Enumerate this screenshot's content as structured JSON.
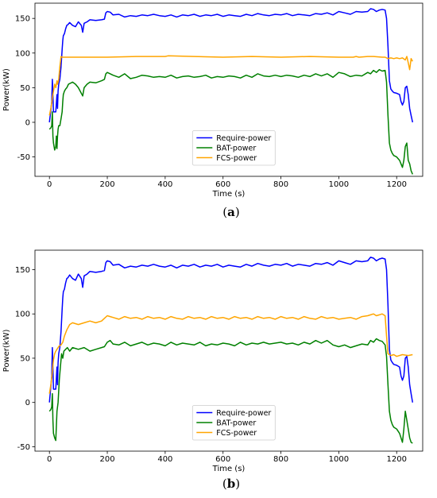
{
  "chart_data": [
    {
      "type": "line",
      "caption_open": "(",
      "caption_letter": "a",
      "caption_close": ")",
      "xlabel": "Time (s)",
      "ylabel": "Power(kW)",
      "xlim": [
        -50,
        1290
      ],
      "ylim": [
        -78,
        172
      ],
      "xticks": [
        0,
        200,
        400,
        600,
        800,
        1000,
        1200
      ],
      "yticks": [
        -50,
        0,
        50,
        100,
        150
      ],
      "legend_position": "lower-center",
      "series": [
        {
          "name": "Require-power",
          "color": "#0000ff",
          "x": [
            0,
            5,
            8,
            10,
            12,
            14,
            18,
            22,
            26,
            28,
            30,
            32,
            36,
            40,
            44,
            46,
            48,
            52,
            56,
            60,
            64,
            70,
            80,
            90,
            100,
            110,
            115,
            120,
            130,
            140,
            160,
            180,
            190,
            195,
            200,
            210,
            220,
            240,
            260,
            280,
            300,
            320,
            340,
            360,
            380,
            400,
            420,
            440,
            460,
            480,
            500,
            520,
            540,
            560,
            580,
            600,
            620,
            640,
            660,
            680,
            700,
            720,
            740,
            760,
            780,
            800,
            820,
            840,
            860,
            880,
            900,
            920,
            940,
            960,
            980,
            1000,
            1020,
            1040,
            1060,
            1080,
            1100,
            1110,
            1120,
            1130,
            1140,
            1150,
            1160,
            1165,
            1170,
            1175,
            1180,
            1185,
            1190,
            1200,
            1210,
            1215,
            1220,
            1225,
            1230,
            1235,
            1240,
            1245,
            1250,
            1255
          ],
          "y": [
            0,
            18,
            30,
            62,
            40,
            15,
            15,
            15,
            40,
            20,
            45,
            55,
            62,
            80,
            105,
            118,
            125,
            128,
            135,
            140,
            141,
            144,
            140,
            138,
            145,
            140,
            130,
            143,
            145,
            148,
            147,
            148,
            149,
            158,
            160,
            159,
            155,
            156,
            152,
            154,
            153,
            155,
            154,
            156,
            154,
            153,
            155,
            152,
            155,
            154,
            156,
            153,
            155,
            154,
            156,
            153,
            155,
            154,
            153,
            156,
            154,
            157,
            155,
            154,
            156,
            155,
            157,
            154,
            156,
            155,
            154,
            157,
            156,
            158,
            155,
            160,
            158,
            156,
            160,
            159,
            160,
            164,
            163,
            160,
            162,
            163,
            162,
            150,
            110,
            60,
            48,
            45,
            43,
            42,
            40,
            30,
            25,
            30,
            50,
            52,
            40,
            20,
            10,
            0
          ]
        },
        {
          "name": "BAT-power",
          "color": "#008000",
          "x": [
            0,
            5,
            8,
            10,
            12,
            14,
            18,
            22,
            24,
            26,
            28,
            30,
            32,
            36,
            40,
            44,
            46,
            48,
            52,
            56,
            60,
            66,
            80,
            90,
            100,
            110,
            115,
            120,
            130,
            140,
            160,
            180,
            190,
            195,
            200,
            210,
            220,
            240,
            260,
            280,
            300,
            320,
            340,
            360,
            380,
            400,
            420,
            440,
            460,
            480,
            500,
            520,
            540,
            560,
            580,
            600,
            620,
            640,
            660,
            680,
            700,
            720,
            740,
            760,
            780,
            800,
            820,
            840,
            860,
            880,
            900,
            920,
            940,
            960,
            980,
            1000,
            1020,
            1040,
            1060,
            1080,
            1100,
            1110,
            1120,
            1130,
            1140,
            1150,
            1160,
            1165,
            1170,
            1175,
            1180,
            1185,
            1190,
            1200,
            1210,
            1215,
            1220,
            1225,
            1230,
            1235,
            1240,
            1245,
            1250,
            1255
          ],
          "y": [
            -10,
            -8,
            -5,
            15,
            -20,
            -30,
            -40,
            -35,
            -20,
            -38,
            -20,
            -10,
            -5,
            -5,
            5,
            15,
            30,
            40,
            45,
            48,
            50,
            55,
            58,
            55,
            50,
            42,
            38,
            50,
            55,
            58,
            57,
            60,
            62,
            70,
            72,
            70,
            68,
            65,
            70,
            63,
            65,
            68,
            67,
            65,
            66,
            65,
            68,
            64,
            66,
            67,
            65,
            66,
            68,
            64,
            66,
            65,
            67,
            66,
            64,
            68,
            65,
            70,
            67,
            66,
            68,
            66,
            68,
            67,
            65,
            68,
            66,
            70,
            67,
            70,
            65,
            72,
            70,
            66,
            68,
            67,
            72,
            70,
            75,
            72,
            76,
            74,
            75,
            58,
            10,
            -30,
            -40,
            -45,
            -48,
            -50,
            -55,
            -60,
            -65,
            -55,
            -35,
            -30,
            -55,
            -60,
            -70,
            -75
          ]
        },
        {
          "name": "FCS-power",
          "color": "#ffa500",
          "x": [
            0,
            5,
            8,
            10,
            12,
            14,
            18,
            22,
            26,
            28,
            30,
            32,
            36,
            40,
            44,
            48,
            100,
            200,
            300,
            400,
            410,
            500,
            600,
            700,
            800,
            900,
            1000,
            1050,
            1060,
            1070,
            1100,
            1110,
            1120,
            1150,
            1160,
            1170,
            1180,
            1190,
            1200,
            1210,
            1220,
            1230,
            1235,
            1240,
            1245,
            1250,
            1255
          ],
          "y": [
            10,
            20,
            28,
            35,
            40,
            45,
            55,
            50,
            60,
            55,
            58,
            62,
            80,
            95,
            94,
            94,
            94,
            94,
            95,
            95,
            96,
            95,
            94,
            95,
            94,
            95,
            94,
            94,
            95,
            94,
            95,
            95,
            95,
            94,
            94,
            92,
            93,
            92,
            93,
            92,
            93,
            90,
            95,
            86,
            76,
            92,
            88
          ]
        }
      ]
    },
    {
      "type": "line",
      "caption_open": "(",
      "caption_letter": "b",
      "caption_close": ")",
      "xlabel": "Time (s)",
      "ylabel": "Power(kW)",
      "xlim": [
        -50,
        1290
      ],
      "ylim": [
        -55,
        172
      ],
      "xticks": [
        0,
        200,
        400,
        600,
        800,
        1000,
        1200
      ],
      "yticks": [
        -50,
        0,
        50,
        100,
        150
      ],
      "legend_position": "lower-center",
      "series": [
        {
          "name": "Require-power",
          "color": "#0000ff",
          "x": [
            0,
            5,
            8,
            10,
            12,
            14,
            18,
            22,
            26,
            28,
            30,
            32,
            36,
            40,
            44,
            46,
            48,
            52,
            56,
            60,
            64,
            70,
            80,
            90,
            100,
            110,
            115,
            120,
            130,
            140,
            160,
            180,
            190,
            195,
            200,
            210,
            220,
            240,
            260,
            280,
            300,
            320,
            340,
            360,
            380,
            400,
            420,
            440,
            460,
            480,
            500,
            520,
            540,
            560,
            580,
            600,
            620,
            640,
            660,
            680,
            700,
            720,
            740,
            760,
            780,
            800,
            820,
            840,
            860,
            880,
            900,
            920,
            940,
            960,
            980,
            1000,
            1020,
            1040,
            1060,
            1080,
            1100,
            1110,
            1120,
            1130,
            1140,
            1150,
            1160,
            1165,
            1170,
            1175,
            1180,
            1185,
            1190,
            1200,
            1210,
            1215,
            1220,
            1225,
            1230,
            1235,
            1240,
            1245,
            1250,
            1255
          ],
          "y": [
            0,
            18,
            30,
            62,
            40,
            15,
            15,
            15,
            40,
            20,
            45,
            55,
            62,
            80,
            105,
            118,
            125,
            128,
            135,
            140,
            141,
            144,
            140,
            138,
            145,
            140,
            130,
            143,
            145,
            148,
            147,
            148,
            149,
            158,
            160,
            159,
            155,
            156,
            152,
            154,
            153,
            155,
            154,
            156,
            154,
            153,
            155,
            152,
            155,
            154,
            156,
            153,
            155,
            154,
            156,
            153,
            155,
            154,
            153,
            156,
            154,
            157,
            155,
            154,
            156,
            155,
            157,
            154,
            156,
            155,
            154,
            157,
            156,
            158,
            155,
            160,
            158,
            156,
            160,
            159,
            160,
            164,
            163,
            160,
            162,
            163,
            162,
            150,
            110,
            60,
            48,
            45,
            43,
            42,
            40,
            30,
            25,
            30,
            50,
            52,
            40,
            20,
            10,
            0
          ]
        },
        {
          "name": "BAT-power",
          "color": "#008000",
          "x": [
            0,
            5,
            8,
            10,
            12,
            14,
            18,
            22,
            26,
            30,
            34,
            38,
            42,
            46,
            50,
            56,
            62,
            70,
            80,
            100,
            120,
            140,
            160,
            180,
            190,
            200,
            210,
            220,
            240,
            260,
            280,
            300,
            320,
            340,
            360,
            380,
            400,
            420,
            440,
            460,
            480,
            500,
            520,
            540,
            560,
            580,
            600,
            620,
            640,
            660,
            680,
            700,
            720,
            740,
            760,
            780,
            800,
            820,
            840,
            860,
            880,
            900,
            920,
            940,
            960,
            980,
            1000,
            1020,
            1040,
            1060,
            1080,
            1100,
            1110,
            1120,
            1130,
            1140,
            1150,
            1160,
            1165,
            1170,
            1175,
            1180,
            1185,
            1190,
            1200,
            1210,
            1215,
            1220,
            1225,
            1230,
            1235,
            1240,
            1245,
            1250,
            1255
          ],
          "y": [
            -10,
            -8,
            -5,
            10,
            -20,
            -35,
            -40,
            -43,
            -10,
            0,
            25,
            40,
            55,
            50,
            58,
            60,
            62,
            58,
            62,
            60,
            62,
            58,
            60,
            62,
            63,
            68,
            70,
            66,
            65,
            68,
            64,
            66,
            68,
            65,
            67,
            66,
            64,
            68,
            65,
            67,
            66,
            65,
            68,
            64,
            66,
            65,
            67,
            66,
            64,
            68,
            65,
            67,
            66,
            68,
            66,
            67,
            68,
            66,
            67,
            65,
            68,
            66,
            70,
            67,
            70,
            65,
            63,
            65,
            62,
            64,
            66,
            65,
            70,
            68,
            72,
            70,
            69,
            65,
            52,
            20,
            -10,
            -20,
            -25,
            -28,
            -30,
            -35,
            -40,
            -45,
            -30,
            -10,
            -20,
            -30,
            -40,
            -45,
            -46
          ]
        },
        {
          "name": "FCS-power",
          "color": "#ffa500",
          "x": [
            0,
            5,
            8,
            10,
            12,
            14,
            18,
            22,
            26,
            30,
            34,
            40,
            46,
            52,
            60,
            70,
            80,
            100,
            120,
            140,
            160,
            180,
            190,
            200,
            210,
            220,
            240,
            260,
            280,
            300,
            320,
            340,
            360,
            380,
            400,
            420,
            440,
            460,
            480,
            500,
            520,
            540,
            560,
            580,
            600,
            620,
            640,
            660,
            680,
            700,
            720,
            740,
            760,
            780,
            800,
            820,
            840,
            860,
            880,
            900,
            920,
            940,
            960,
            980,
            1000,
            1020,
            1040,
            1060,
            1080,
            1100,
            1110,
            1120,
            1130,
            1140,
            1150,
            1160,
            1165,
            1170,
            1175,
            1180,
            1190,
            1200,
            1220,
            1240,
            1255
          ],
          "y": [
            10,
            20,
            28,
            35,
            42,
            48,
            55,
            58,
            60,
            62,
            64,
            65,
            68,
            75,
            82,
            88,
            90,
            88,
            90,
            92,
            90,
            92,
            95,
            98,
            97,
            96,
            94,
            97,
            95,
            96,
            94,
            97,
            95,
            96,
            94,
            97,
            95,
            94,
            97,
            95,
            96,
            94,
            97,
            95,
            96,
            94,
            97,
            95,
            96,
            94,
            97,
            95,
            96,
            94,
            97,
            95,
            96,
            94,
            97,
            95,
            94,
            97,
            95,
            96,
            94,
            95,
            96,
            94,
            97,
            98,
            99,
            100,
            98,
            99,
            100,
            98,
            75,
            55,
            54,
            53,
            54,
            52,
            54,
            53,
            54
          ]
        }
      ]
    }
  ]
}
